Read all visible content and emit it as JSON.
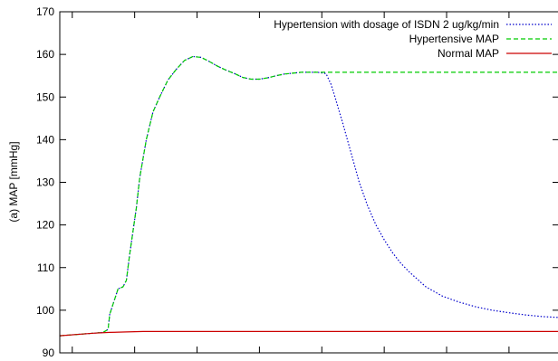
{
  "chart_data": {
    "type": "line",
    "ylabel": "(a) MAP [mmHg]",
    "ylim": [
      90,
      170
    ],
    "yticks": [
      90,
      100,
      110,
      120,
      130,
      140,
      150,
      160,
      170
    ],
    "xtick_count": 8,
    "legend_position": "top-right",
    "grid": false,
    "series": [
      {
        "name": "Hypertension with dosage of ISDN 2 ug/kg/min",
        "color": "#0000cc",
        "dash": "dotted",
        "x": [
          0,
          2,
          2.6,
          2.9,
          3.0,
          3.5,
          3.8,
          4.0,
          4.2,
          4.6,
          4.8,
          5.2,
          5.6,
          6.0,
          6.5,
          7.0,
          7.5,
          8.0,
          8.5,
          9.0,
          9.5,
          10.0,
          10.5,
          11.0,
          11.5,
          12.0,
          12.5,
          13.0,
          13.5,
          14.0,
          14.5,
          15.0,
          15.5,
          16.0,
          16.3,
          16.5,
          17.0,
          17.5,
          18.0,
          18.5,
          19.0,
          19.5,
          20.0,
          20.5,
          21.0,
          22.0,
          23.0,
          24.0,
          25.0,
          26.0,
          27.0,
          28.0,
          29.0,
          30.0
        ],
        "y": [
          94,
          94.6,
          94.8,
          95.5,
          99,
          105,
          105.5,
          107,
          113,
          124,
          131,
          140,
          146.5,
          150,
          154,
          156.5,
          158.6,
          159.5,
          159.3,
          158.3,
          157.2,
          156.3,
          155.5,
          154.6,
          154.2,
          154.2,
          154.5,
          155,
          155.4,
          155.6,
          155.8,
          155.8,
          155.8,
          155.5,
          153,
          150.5,
          144,
          137,
          130,
          124.5,
          120,
          116.5,
          113.5,
          111,
          109,
          105.5,
          103.3,
          101.9,
          100.8,
          100.0,
          99.4,
          98.9,
          98.5,
          98.3
        ]
      },
      {
        "name": "Hypertensive MAP",
        "color": "#00cc00",
        "dash": "dashed",
        "x": [
          0,
          2,
          2.6,
          2.9,
          3.0,
          3.5,
          3.8,
          4.0,
          4.2,
          4.6,
          4.8,
          5.2,
          5.6,
          6.0,
          6.5,
          7.0,
          7.5,
          8.0,
          8.5,
          9.0,
          9.5,
          10.0,
          10.5,
          11.0,
          11.5,
          12.0,
          12.5,
          13.0,
          13.5,
          14.0,
          14.5,
          15.0,
          15.5,
          20.0,
          25.0,
          30.0
        ],
        "y": [
          94,
          94.6,
          94.8,
          95.5,
          99,
          105,
          105.5,
          107,
          113,
          124,
          131,
          140,
          146.5,
          150,
          154,
          156.5,
          158.6,
          159.5,
          159.3,
          158.3,
          157.2,
          156.3,
          155.5,
          154.6,
          154.2,
          154.2,
          154.5,
          155,
          155.4,
          155.6,
          155.8,
          155.8,
          155.8,
          155.8,
          155.8,
          155.8
        ]
      },
      {
        "name": "Normal MAP",
        "color": "#cc0000",
        "dash": "solid",
        "x": [
          0,
          1,
          2,
          3,
          4,
          5,
          6,
          7,
          8,
          10,
          12,
          14,
          16,
          18,
          20,
          22,
          24,
          26,
          28,
          30
        ],
        "y": [
          94,
          94.3,
          94.6,
          94.8,
          94.9,
          95.0,
          95.0,
          95.0,
          95.0,
          95.0,
          95.0,
          95.0,
          95.0,
          95.0,
          95.0,
          95.0,
          95.0,
          95.0,
          95.0,
          95.0
        ]
      }
    ]
  }
}
